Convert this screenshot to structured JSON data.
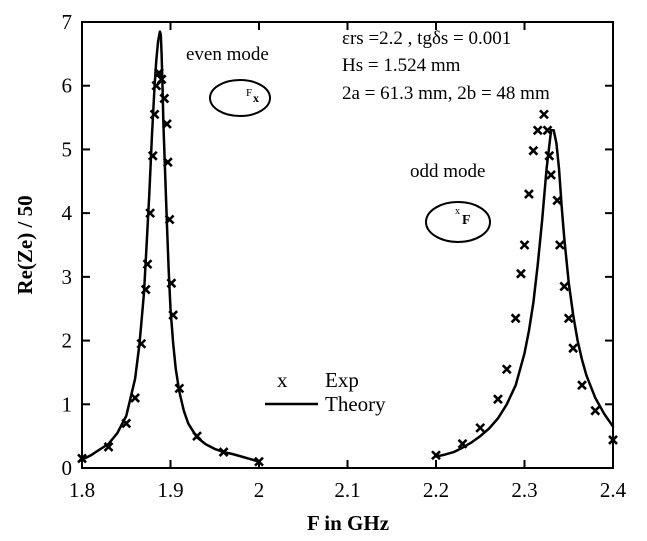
{
  "chart_data": {
    "type": "line",
    "xlabel": "F in GHz",
    "ylabel": "Re(Ze) / 50",
    "xlim": [
      1.8,
      2.4
    ],
    "ylim": [
      0,
      7
    ],
    "x_ticks": [
      "1.8",
      "1.9",
      "2",
      "2.1",
      "2.2",
      "2.3",
      "2.4"
    ],
    "y_ticks": [
      "0",
      "1",
      "2",
      "3",
      "4",
      "5",
      "6",
      "7"
    ],
    "grid": false,
    "legend": {
      "placement": "center",
      "exp_marker": "x",
      "exp_label": "Exp",
      "theory_label": "Theory"
    },
    "annotations": {
      "params": [
        "εrs =2.2 , tgδs = 0.001",
        "Hs = 1.524 mm",
        "2a = 61.3 mm, 2b = 48 mm"
      ],
      "even_mode": "even mode",
      "odd_mode": "odd mode",
      "even_symbol": {
        "main": "F",
        "sub": "x"
      },
      "odd_symbol": {
        "main": "F",
        "sup": "x"
      }
    },
    "series": [
      {
        "name": "Theory",
        "style": "line",
        "segments": [
          {
            "x": [
              1.8,
              1.81,
              1.82,
              1.83,
              1.84,
              1.85,
              1.86,
              1.865,
              1.87,
              1.873,
              1.876,
              1.879,
              1.882,
              1.884,
              1.886,
              1.888,
              1.889,
              1.89,
              1.891,
              1.892,
              1.894,
              1.896,
              1.898,
              1.9,
              1.903,
              1.906,
              1.91,
              1.915,
              1.92,
              1.93,
              1.94,
              1.95,
              1.96,
              1.97,
              1.98,
              1.99,
              2.0
            ],
            "y": [
              0.13,
              0.2,
              0.29,
              0.38,
              0.55,
              0.82,
              1.4,
              1.95,
              2.75,
              3.5,
              4.3,
              5.2,
              6.0,
              6.4,
              6.7,
              6.85,
              6.8,
              6.5,
              6.0,
              5.4,
              4.6,
              3.8,
              3.1,
              2.5,
              1.95,
              1.55,
              1.2,
              0.9,
              0.7,
              0.48,
              0.37,
              0.3,
              0.25,
              0.22,
              0.18,
              0.14,
              0.1
            ]
          },
          {
            "x": [
              2.2,
              2.21,
              2.22,
              2.23,
              2.24,
              2.25,
              2.26,
              2.27,
              2.28,
              2.29,
              2.3,
              2.305,
              2.31,
              2.315,
              2.32,
              2.325,
              2.33,
              2.333,
              2.336,
              2.339,
              2.342,
              2.345,
              2.35,
              2.355,
              2.36,
              2.365,
              2.37,
              2.38,
              2.39,
              2.4
            ],
            "y": [
              0.18,
              0.21,
              0.25,
              0.32,
              0.4,
              0.5,
              0.62,
              0.78,
              1.0,
              1.3,
              1.8,
              2.15,
              2.6,
              3.2,
              3.9,
              4.7,
              5.3,
              5.3,
              5.1,
              4.7,
              4.1,
              3.6,
              2.9,
              2.4,
              2.0,
              1.7,
              1.45,
              1.1,
              0.85,
              0.65
            ]
          }
        ]
      },
      {
        "name": "Exp",
        "style": "x-markers",
        "points": [
          [
            1.8,
            0.15
          ],
          [
            1.83,
            0.33
          ],
          [
            1.85,
            0.7
          ],
          [
            1.86,
            1.1
          ],
          [
            1.867,
            1.95
          ],
          [
            1.872,
            2.8
          ],
          [
            1.874,
            3.2
          ],
          [
            1.877,
            4.0
          ],
          [
            1.88,
            4.9
          ],
          [
            1.882,
            5.55
          ],
          [
            1.884,
            6.0
          ],
          [
            1.887,
            6.2
          ],
          [
            1.89,
            6.1
          ],
          [
            1.893,
            5.8
          ],
          [
            1.896,
            5.4
          ],
          [
            1.897,
            4.8
          ],
          [
            1.899,
            3.9
          ],
          [
            1.901,
            2.9
          ],
          [
            1.903,
            2.4
          ],
          [
            1.91,
            1.25
          ],
          [
            1.93,
            0.5
          ],
          [
            1.96,
            0.25
          ],
          [
            2.0,
            0.1
          ],
          [
            2.2,
            0.2
          ],
          [
            2.23,
            0.38
          ],
          [
            2.25,
            0.63
          ],
          [
            2.27,
            1.08
          ],
          [
            2.28,
            1.55
          ],
          [
            2.29,
            2.35
          ],
          [
            2.296,
            3.05
          ],
          [
            2.3,
            3.5
          ],
          [
            2.305,
            4.3
          ],
          [
            2.31,
            4.98
          ],
          [
            2.315,
            5.3
          ],
          [
            2.322,
            5.55
          ],
          [
            2.326,
            5.3
          ],
          [
            2.328,
            4.9
          ],
          [
            2.33,
            4.6
          ],
          [
            2.337,
            4.2
          ],
          [
            2.34,
            3.5
          ],
          [
            2.345,
            2.85
          ],
          [
            2.35,
            2.35
          ],
          [
            2.355,
            1.88
          ],
          [
            2.365,
            1.3
          ],
          [
            2.38,
            0.9
          ],
          [
            2.4,
            0.44
          ]
        ]
      }
    ]
  }
}
